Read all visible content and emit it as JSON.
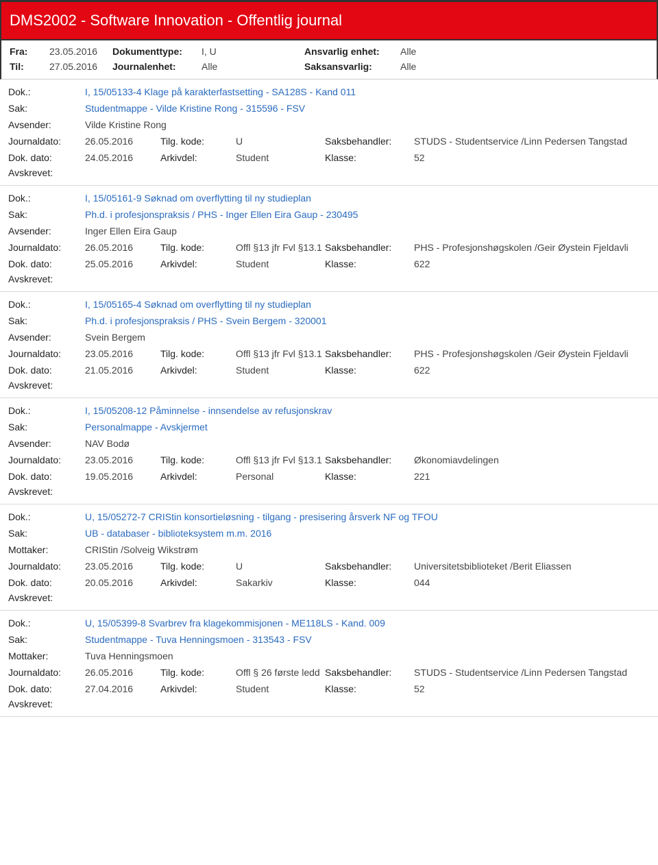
{
  "header": {
    "title": "DMS2002 - Software Innovation - Offentlig journal"
  },
  "meta": {
    "fra_label": "Fra:",
    "fra_value": "23.05.2016",
    "til_label": "Til:",
    "til_value": "27.05.2016",
    "doktype_label": "Dokumenttype:",
    "doktype_value": "I, U",
    "journalenhet_label": "Journalenhet:",
    "journalenhet_value": "Alle",
    "ansvarlig_label": "Ansvarlig enhet:",
    "ansvarlig_value": "Alle",
    "saksansvarlig_label": "Saksansvarlig:",
    "saksansvarlig_value": "Alle"
  },
  "labels": {
    "dok": "Dok.:",
    "sak": "Sak:",
    "avsender": "Avsender:",
    "mottaker": "Mottaker:",
    "journaldato": "Journaldato:",
    "dokdato": "Dok. dato:",
    "tilgkode": "Tilg. kode:",
    "arkivdel": "Arkivdel:",
    "saksbehandler": "Saksbehandler:",
    "klasse": "Klasse:",
    "avskrevet": "Avskrevet:"
  },
  "records": [
    {
      "dok": "I, 15/05133-4 Klage på karakterfastsetting - SA128S - Kand 011",
      "sak": "Studentmappe - Vilde Kristine Rong - 315596 - FSV",
      "party_label": "Avsender:",
      "party": "Vilde Kristine Rong",
      "journaldato": "26.05.2016",
      "tilgkode": "U",
      "saksbehandler": "STUDS - Studentservice /Linn Pedersen Tangstad",
      "dokdato": "24.05.2016",
      "arkivdel": "Student",
      "klasse": "52"
    },
    {
      "dok": "I, 15/05161-9 Søknad om overflytting til ny studieplan",
      "sak": "Ph.d. i profesjonspraksis / PHS - Inger Ellen Eira Gaup - 230495",
      "party_label": "Avsender:",
      "party": "Inger Ellen Eira Gaup",
      "journaldato": "26.05.2016",
      "tilgkode": "Offl §13 jfr Fvl §13.1",
      "saksbehandler": "PHS - Profesjonshøgskolen /Geir Øystein Fjeldavli",
      "dokdato": "25.05.2016",
      "arkivdel": "Student",
      "klasse": "622"
    },
    {
      "dok": "I, 15/05165-4 Søknad om overflytting til ny studieplan",
      "sak": "Ph.d. i profesjonspraksis / PHS - Svein Bergem - 320001",
      "party_label": "Avsender:",
      "party": "Svein Bergem",
      "journaldato": "23.05.2016",
      "tilgkode": "Offl §13 jfr Fvl §13.1",
      "saksbehandler": "PHS - Profesjonshøgskolen /Geir Øystein Fjeldavli",
      "dokdato": "21.05.2016",
      "arkivdel": "Student",
      "klasse": "622"
    },
    {
      "dok": "I, 15/05208-12 Påminnelse - innsendelse av refusjonskrav",
      "sak": "Personalmappe - Avskjermet",
      "party_label": "Avsender:",
      "party": "NAV Bodø",
      "journaldato": "23.05.2016",
      "tilgkode": "Offl §13 jfr Fvl §13.1",
      "saksbehandler": "Økonomiavdelingen",
      "dokdato": "19.05.2016",
      "arkivdel": "Personal",
      "klasse": "221"
    },
    {
      "dok": "U, 15/05272-7 CRIStin konsortieløsning - tilgang - presisering årsverk NF og TFOU",
      "sak": "UB - databaser -  biblioteksystem m.m. 2016",
      "party_label": "Mottaker:",
      "party": "CRIStin /Solveig Wikstrøm",
      "journaldato": "23.05.2016",
      "tilgkode": "U",
      "saksbehandler": "Universitetsbiblioteket /Berit Eliassen",
      "dokdato": "20.05.2016",
      "arkivdel": "Sakarkiv",
      "klasse": "044"
    },
    {
      "dok": "U, 15/05399-8 Svarbrev fra klagekommisjonen - ME118LS - Kand. 009",
      "sak": "Studentmappe - Tuva Henningsmoen - 313543 - FSV",
      "party_label": "Mottaker:",
      "party": "Tuva Henningsmoen",
      "journaldato": "26.05.2016",
      "tilgkode": "Offl § 26 første ledd",
      "saksbehandler": "STUDS - Studentservice /Linn Pedersen Tangstad",
      "dokdato": "27.04.2016",
      "arkivdel": "Student",
      "klasse": "52"
    }
  ]
}
